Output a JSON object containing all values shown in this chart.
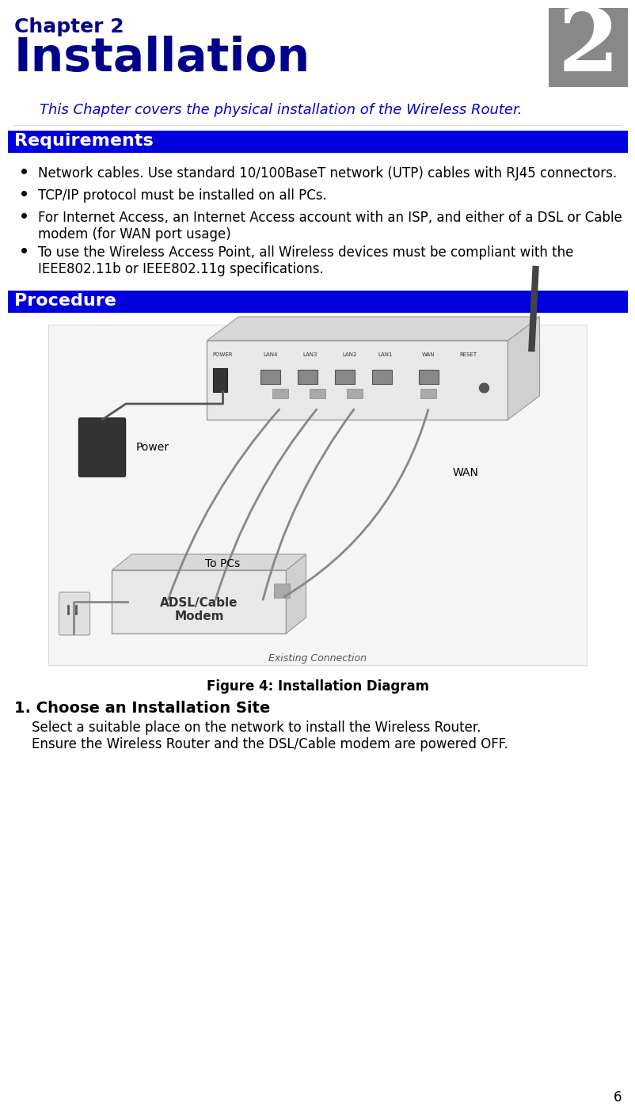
{
  "bg_color": "#ffffff",
  "chapter_label": "Chapter 2",
  "chapter_label_color": "#00008B",
  "chapter_label_fontsize": 18,
  "title": "Installation",
  "title_color": "#00008B",
  "title_fontsize": 42,
  "subtitle": "This Chapter covers the physical installation of the Wireless Router.",
  "subtitle_color": "#0000cc",
  "subtitle_fontsize": 13,
  "badge_bg": "#888888",
  "badge_number": "2",
  "badge_color": "#ffffff",
  "badge_fontsize": 80,
  "section1_title": "Requirements",
  "section1_bg": "#0000dd",
  "section1_fg": "#ffffff",
  "section2_title": "Procedure",
  "section2_bg": "#0000dd",
  "section2_fg": "#ffffff",
  "section_title_fontsize": 16,
  "bullet_items": [
    "Network cables. Use standard 10/100BaseT network (UTP) cables with RJ45 connectors.",
    "TCP/IP protocol must be installed on all PCs.",
    "For Internet Access, an Internet Access account with an ISP, and either of a DSL or Cable\nmodem (for WAN port usage)",
    "To use the Wireless Access Point, all Wireless devices must be compliant with the\nIEEE802.11b or IEEE802.11g specifications."
  ],
  "bullet_fontsize": 12,
  "figure_caption": "Figure 4: Installation Diagram",
  "figure_caption_fontsize": 12,
  "step_title": "1. Choose an Installation Site",
  "step_title_fontsize": 14,
  "step_text": "Select a suitable place on the network to install the Wireless Router.\nEnsure the Wireless Router and the DSL/Cable modem are powered OFF.",
  "step_text_fontsize": 12,
  "page_number": "6",
  "page_number_fontsize": 12
}
